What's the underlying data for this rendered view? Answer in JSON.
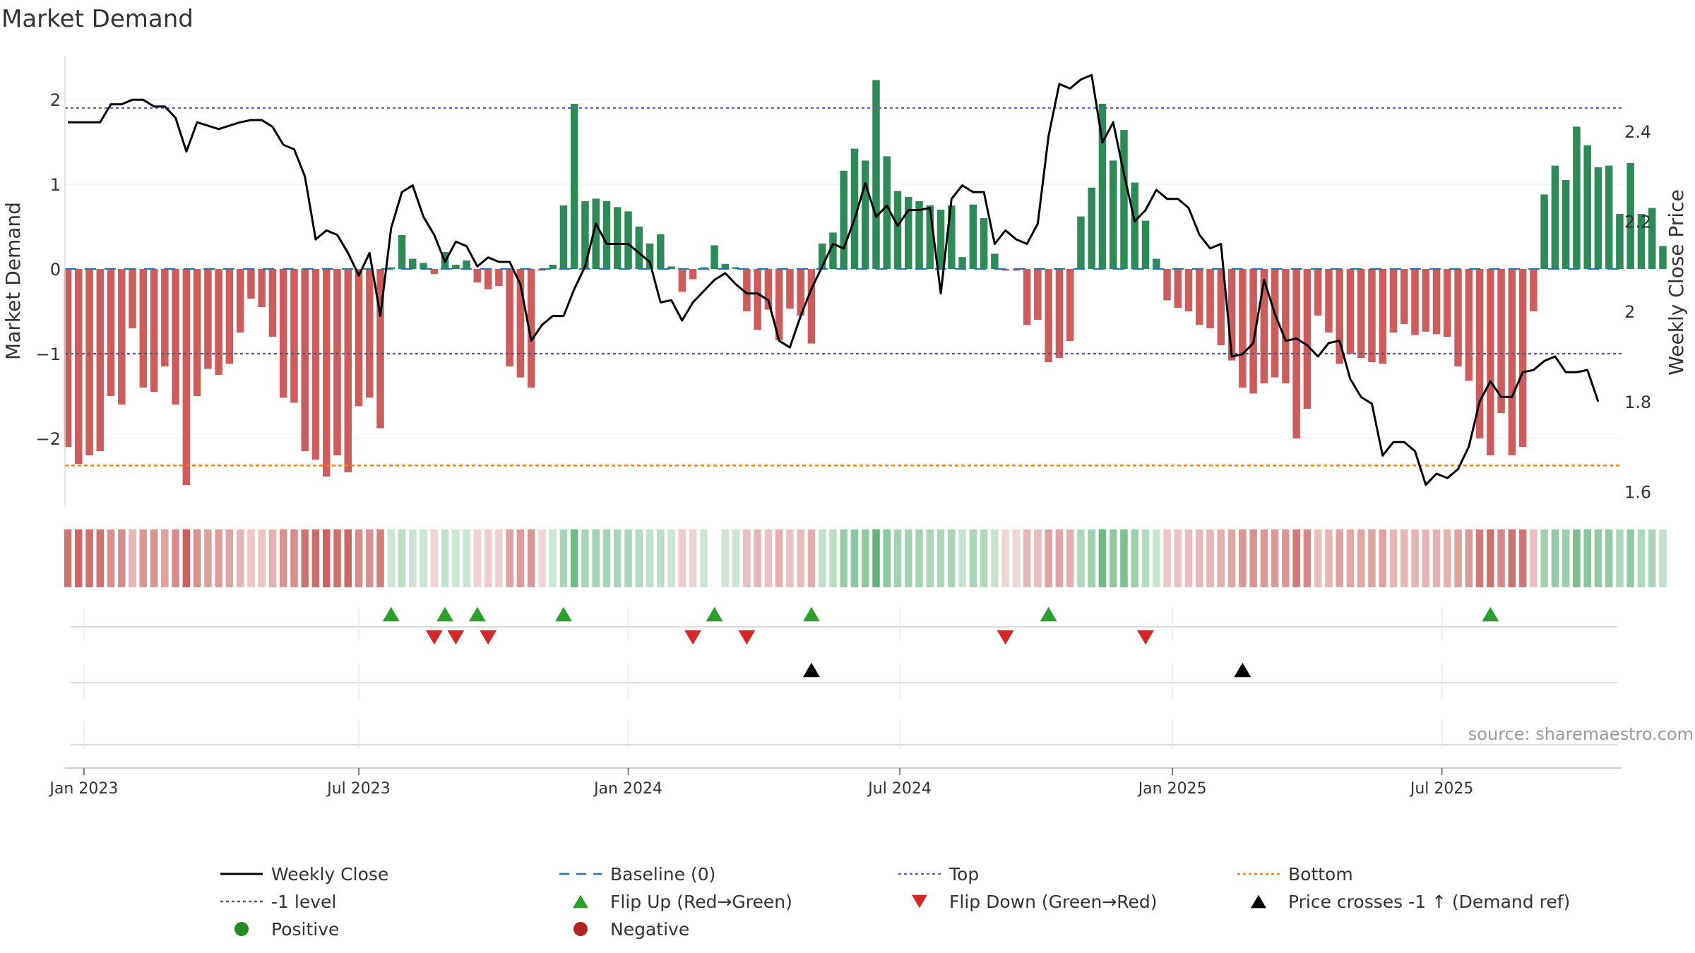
{
  "title": "Market Demand",
  "source": "source: sharemaestro.com",
  "colors": {
    "positive_bar": "#2e8b57",
    "negative_bar": "#cd5c5c",
    "price_line": "#000000",
    "baseline": "#1f77b4",
    "top_line": "#6a5acd",
    "minus1_line": "#555577",
    "bottom_line": "#ff7f0e",
    "flip_up": "#2ca02c",
    "flip_down": "#d62728",
    "cross": "#000000",
    "positive_dot": "#228b22",
    "negative_dot": "#b22222"
  },
  "chart_data": {
    "type": "bar",
    "title": "Market Demand",
    "ylabel": "Market Demand",
    "y2label": "Weekly Close Price",
    "ylim": [
      -2.8,
      2.5
    ],
    "y2lim": [
      1.575,
      2.6
    ],
    "yticks": [
      2,
      1,
      0,
      -1,
      -2
    ],
    "ytick_labels": [
      "2",
      "1",
      "0",
      "−1",
      "−2"
    ],
    "y2ticks": [
      2.4,
      2.2,
      2.0,
      1.8,
      1.6
    ],
    "y2tick_labels": [
      "2.4",
      "2.2",
      "2",
      "1.8",
      "1.6"
    ],
    "xtick_labels": [
      "Jan 2023",
      "Jul 2023",
      "Jan 2024",
      "Jul 2024",
      "Jan 2025",
      "Jul 2025"
    ],
    "reference_lines": {
      "top": 1.9,
      "minus1": -1.0,
      "bottom": -2.32,
      "baseline": 0
    },
    "demand": [
      -2.1,
      -2.3,
      -2.2,
      -2.15,
      -1.5,
      -1.6,
      -0.7,
      -1.4,
      -1.45,
      -1.15,
      -1.6,
      -2.55,
      -1.5,
      -1.18,
      -1.25,
      -1.12,
      -0.75,
      -0.35,
      -0.45,
      -0.8,
      -1.52,
      -1.58,
      -2.15,
      -2.25,
      -2.45,
      -2.2,
      -2.4,
      -1.62,
      -1.52,
      -1.88,
      0.02,
      0.4,
      0.12,
      0.07,
      -0.06,
      0.2,
      0.05,
      0.1,
      -0.16,
      -0.24,
      -0.2,
      -1.15,
      -1.28,
      -1.4,
      -0.02,
      0.05,
      0.75,
      1.95,
      0.8,
      0.83,
      0.8,
      0.73,
      0.68,
      0.5,
      0.3,
      0.41,
      0.03,
      -0.27,
      -0.12,
      0.02,
      0.28,
      0.06,
      0.02,
      -0.5,
      -0.72,
      -0.48,
      -0.84,
      -0.47,
      -0.55,
      -0.88,
      0.3,
      0.43,
      1.16,
      1.42,
      1.28,
      2.23,
      1.33,
      0.92,
      0.85,
      0.8,
      0.75,
      0.7,
      0.75,
      0.14,
      0.76,
      0.6,
      0.18,
      -0.02,
      -0.02,
      -0.66,
      -0.6,
      -1.1,
      -1.05,
      -0.85,
      0.62,
      0.96,
      1.95,
      1.28,
      1.64,
      1.02,
      0.57,
      0.12,
      -0.37,
      -0.46,
      -0.5,
      -0.66,
      -0.7,
      -0.9,
      -1.08,
      -1.4,
      -1.47,
      -1.35,
      -1.28,
      -1.35,
      -2.0,
      -1.65,
      -0.55,
      -0.75,
      -1.12,
      -1.0,
      -1.05,
      -1.1,
      -1.12,
      -0.75,
      -0.65,
      -0.78,
      -0.74,
      -0.77,
      -0.8,
      -1.15,
      -1.32,
      -2.0,
      -2.2,
      -1.7,
      -2.2,
      -2.1,
      -0.5,
      0.88,
      1.22,
      1.05,
      1.68,
      1.46,
      1.2,
      1.22,
      0.65,
      1.25,
      0.65,
      0.72,
      0.27
    ],
    "price_points": [
      [
        0,
        2.42
      ],
      [
        3,
        2.42
      ],
      [
        4,
        2.46
      ],
      [
        5,
        2.46
      ],
      [
        6,
        2.47
      ],
      [
        7,
        2.47
      ],
      [
        8,
        2.455
      ],
      [
        9,
        2.455
      ],
      [
        10,
        2.43
      ],
      [
        11,
        2.355
      ],
      [
        12,
        2.42
      ],
      [
        14,
        2.405
      ],
      [
        16,
        2.42
      ],
      [
        17,
        2.425
      ],
      [
        18,
        2.425
      ],
      [
        19,
        2.41
      ],
      [
        20,
        2.37
      ],
      [
        21,
        2.36
      ],
      [
        22,
        2.3
      ],
      [
        23,
        2.16
      ],
      [
        24,
        2.18
      ],
      [
        25,
        2.17
      ],
      [
        26,
        2.13
      ],
      [
        27,
        2.08
      ],
      [
        28,
        2.13
      ],
      [
        29,
        1.99
      ],
      [
        30,
        2.185
      ],
      [
        31,
        2.265
      ],
      [
        32,
        2.28
      ],
      [
        33,
        2.21
      ],
      [
        34,
        2.17
      ],
      [
        35,
        2.11
      ],
      [
        36,
        2.155
      ],
      [
        37,
        2.145
      ],
      [
        38,
        2.1
      ],
      [
        39,
        2.12
      ],
      [
        40,
        2.11
      ],
      [
        41,
        2.11
      ],
      [
        42,
        2.06
      ],
      [
        43,
        1.935
      ],
      [
        44,
        1.97
      ],
      [
        45,
        1.99
      ],
      [
        46,
        1.99
      ],
      [
        47,
        2.05
      ],
      [
        48,
        2.1
      ],
      [
        49,
        2.195
      ],
      [
        50,
        2.15
      ],
      [
        51,
        2.15
      ],
      [
        52,
        2.15
      ],
      [
        53,
        2.13
      ],
      [
        54,
        2.11
      ],
      [
        55,
        2.02
      ],
      [
        56,
        2.025
      ],
      [
        57,
        1.98
      ],
      [
        58,
        2.02
      ],
      [
        59,
        2.045
      ],
      [
        60,
        2.07
      ],
      [
        61,
        2.085
      ],
      [
        62,
        2.06
      ],
      [
        63,
        2.04
      ],
      [
        64,
        2.04
      ],
      [
        65,
        2.025
      ],
      [
        66,
        1.935
      ],
      [
        67,
        1.92
      ],
      [
        68,
        1.99
      ],
      [
        69,
        2.05
      ],
      [
        70,
        2.1
      ],
      [
        71,
        2.15
      ],
      [
        72,
        2.14
      ],
      [
        73,
        2.205
      ],
      [
        74,
        2.285
      ],
      [
        75,
        2.21
      ],
      [
        76,
        2.235
      ],
      [
        77,
        2.19
      ],
      [
        78,
        2.225
      ],
      [
        79,
        2.225
      ],
      [
        80,
        2.23
      ],
      [
        81,
        2.04
      ],
      [
        82,
        2.25
      ],
      [
        83,
        2.28
      ],
      [
        84,
        2.265
      ],
      [
        85,
        2.265
      ],
      [
        86,
        2.15
      ],
      [
        87,
        2.18
      ],
      [
        88,
        2.16
      ],
      [
        89,
        2.15
      ],
      [
        90,
        2.195
      ],
      [
        91,
        2.39
      ],
      [
        92,
        2.505
      ],
      [
        93,
        2.495
      ],
      [
        94,
        2.515
      ],
      [
        95,
        2.525
      ],
      [
        96,
        2.375
      ],
      [
        97,
        2.42
      ],
      [
        98,
        2.305
      ],
      [
        99,
        2.2
      ],
      [
        100,
        2.225
      ],
      [
        101,
        2.27
      ],
      [
        102,
        2.25
      ],
      [
        103,
        2.25
      ],
      [
        104,
        2.23
      ],
      [
        105,
        2.17
      ],
      [
        106,
        2.14
      ],
      [
        107,
        2.15
      ],
      [
        108,
        1.9
      ],
      [
        109,
        1.905
      ],
      [
        110,
        1.93
      ],
      [
        111,
        2.07
      ],
      [
        112,
        1.995
      ],
      [
        113,
        1.935
      ],
      [
        114,
        1.94
      ],
      [
        115,
        1.925
      ],
      [
        116,
        1.9
      ],
      [
        117,
        1.93
      ],
      [
        118,
        1.935
      ],
      [
        119,
        1.85
      ],
      [
        120,
        1.81
      ],
      [
        121,
        1.795
      ],
      [
        122,
        1.68
      ],
      [
        123,
        1.71
      ],
      [
        124,
        1.71
      ],
      [
        125,
        1.69
      ],
      [
        126,
        1.615
      ],
      [
        127,
        1.64
      ],
      [
        128,
        1.63
      ],
      [
        129,
        1.65
      ],
      [
        130,
        1.7
      ],
      [
        131,
        1.8
      ],
      [
        132,
        1.845
      ],
      [
        133,
        1.81
      ],
      [
        134,
        1.81
      ],
      [
        135,
        1.865
      ],
      [
        136,
        1.87
      ],
      [
        137,
        1.89
      ],
      [
        138,
        1.9
      ],
      [
        139,
        1.865
      ],
      [
        140,
        1.865
      ],
      [
        141,
        1.87
      ],
      [
        142,
        1.8
      ]
    ],
    "flip_up_weeks": [
      30,
      35,
      38,
      46,
      60,
      69,
      91,
      132
    ],
    "flip_down_weeks": [
      34,
      36,
      39,
      58,
      63,
      87,
      100
    ],
    "price_cross_weeks": [
      69,
      109
    ]
  },
  "legend": [
    {
      "label": "Weekly Close",
      "symbol": "line-solid",
      "color": "#000000"
    },
    {
      "label": "Baseline (0)",
      "symbol": "line-dashed",
      "color": "#1f77b4"
    },
    {
      "label": "Top",
      "symbol": "line-dotted",
      "color": "#6a5acd"
    },
    {
      "label": "Bottom",
      "symbol": "line-dotted",
      "color": "#ff7f0e"
    },
    {
      "label": "-1 level",
      "symbol": "line-dotted",
      "color": "#555577"
    },
    {
      "label": "Flip Up (Red→Green)",
      "symbol": "triangle-up",
      "color": "#2ca02c"
    },
    {
      "label": "Flip Down (Green→Red)",
      "symbol": "triangle-down",
      "color": "#d62728"
    },
    {
      "label": "Price crosses -1 ↑ (Demand ref)",
      "symbol": "triangle-up",
      "color": "#000000"
    },
    {
      "label": "Positive",
      "symbol": "dot",
      "color": "#228b22"
    },
    {
      "label": "Negative",
      "symbol": "dot",
      "color": "#b22222"
    }
  ]
}
